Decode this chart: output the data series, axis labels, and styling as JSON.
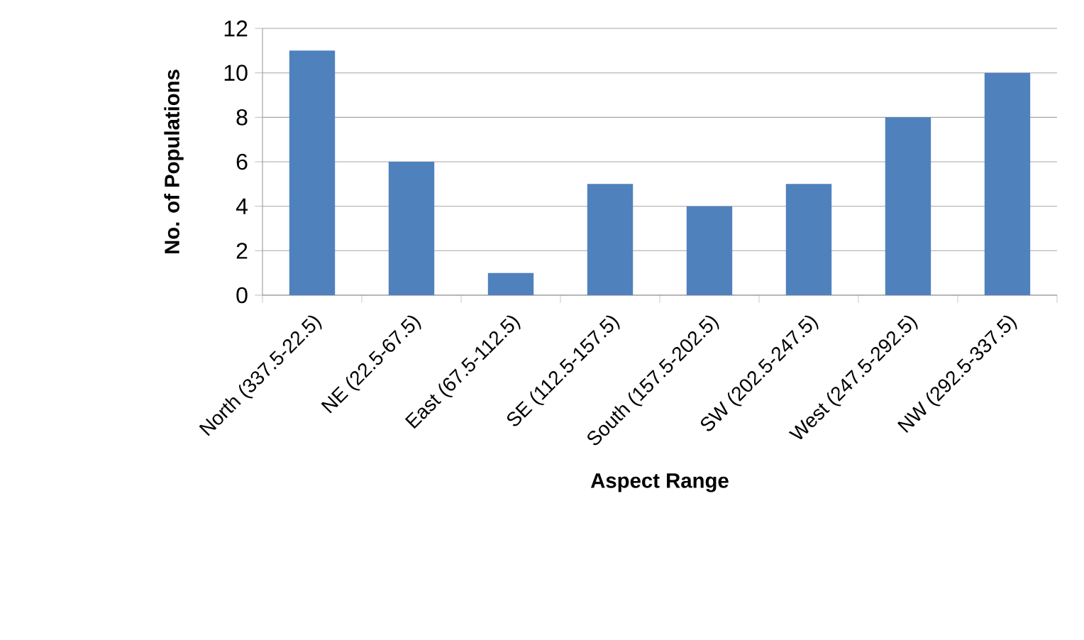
{
  "chart_data": {
    "type": "bar",
    "xlabel": "Aspect Range",
    "ylabel": "No. of Populations",
    "categories": [
      "North (337.5-22.5)",
      "NE (22.5-67.5)",
      "East (67.5-112.5)",
      "SE (112.5-157.5)",
      "South (157.5-202.5)",
      "SW (202.5-247.5)",
      "West (247.5-292.5)",
      "NW (292.5-337.5)"
    ],
    "values": [
      11,
      6,
      1,
      5,
      4,
      5,
      8,
      10
    ],
    "color": "#4f81bd",
    "ylim": [
      0,
      12
    ],
    "yticks": [
      0,
      2,
      4,
      6,
      8,
      10,
      12
    ],
    "grid": "y"
  }
}
